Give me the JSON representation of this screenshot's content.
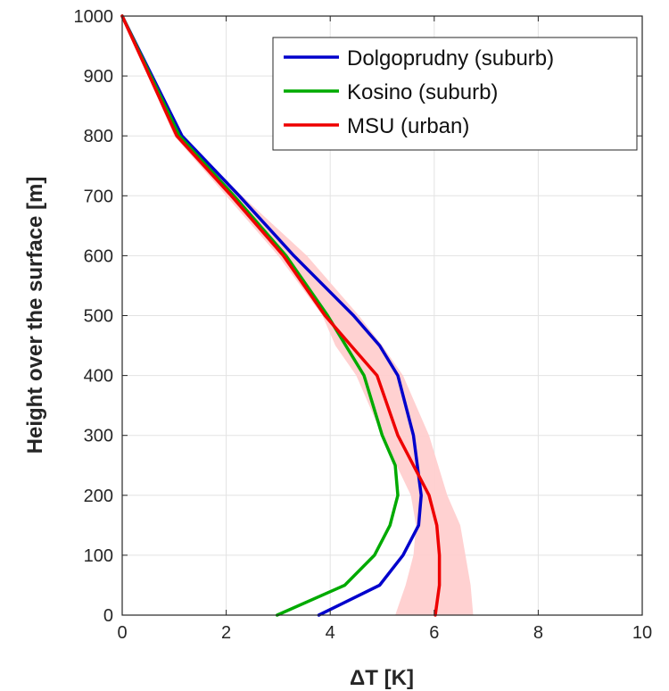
{
  "chart_data": {
    "type": "line",
    "title": "",
    "xlabel": "ΔT [K]",
    "ylabel": "Height over the surface [m]",
    "xlim": [
      0,
      10
    ],
    "ylim": [
      0,
      1000
    ],
    "xticks": [
      0,
      2,
      4,
      6,
      8,
      10
    ],
    "yticks": [
      0,
      100,
      200,
      300,
      400,
      500,
      600,
      700,
      800,
      900,
      1000
    ],
    "xtick_labels": [
      "0",
      "2",
      "4",
      "6",
      "8",
      "10"
    ],
    "ytick_labels": [
      "0",
      "100",
      "200",
      "300",
      "400",
      "500",
      "600",
      "700",
      "800",
      "900",
      "1000"
    ],
    "grid": true,
    "legend_position": "top-right",
    "series": [
      {
        "name": "Dolgoprudny (suburb)",
        "color": "#0000cc",
        "x": [
          3.78,
          4.95,
          5.4,
          5.7,
          5.75,
          5.6,
          5.3,
          4.95,
          4.45,
          3.3,
          2.25,
          1.15,
          0
        ],
        "y": [
          0,
          50,
          100,
          150,
          200,
          300,
          400,
          450,
          500,
          600,
          700,
          800,
          1000
        ]
      },
      {
        "name": "Kosino (suburb)",
        "color": "#00aa00",
        "x": [
          2.98,
          4.28,
          4.85,
          5.15,
          5.3,
          5.25,
          5.0,
          4.65,
          4.3,
          3.95,
          3.15,
          2.15,
          1.1,
          0
        ],
        "y": [
          0,
          50,
          100,
          150,
          200,
          250,
          300,
          400,
          450,
          500,
          600,
          700,
          800,
          1000
        ]
      },
      {
        "name": "MSU (urban)",
        "color": "#ee0000",
        "x": [
          6.02,
          6.1,
          6.1,
          6.05,
          5.9,
          5.3,
          4.9,
          4.4,
          3.9,
          3.1,
          2.1,
          1.05,
          0
        ],
        "y": [
          0,
          50,
          100,
          150,
          200,
          300,
          400,
          450,
          500,
          600,
          700,
          800,
          1000
        ]
      }
    ],
    "band": {
      "series": "MSU (urban)",
      "color": "#ffcccc",
      "lower_x": [
        5.25,
        5.45,
        5.6,
        5.65,
        5.55,
        5.0,
        4.5,
        4.1,
        3.85,
        3.0,
        2.0,
        1.0,
        0
      ],
      "upper_x": [
        6.75,
        6.7,
        6.6,
        6.5,
        6.25,
        5.9,
        5.4,
        5.0,
        4.55,
        3.55,
        2.3,
        1.15,
        0
      ],
      "y": [
        0,
        50,
        100,
        150,
        200,
        300,
        400,
        450,
        500,
        600,
        700,
        800,
        1000
      ]
    }
  }
}
